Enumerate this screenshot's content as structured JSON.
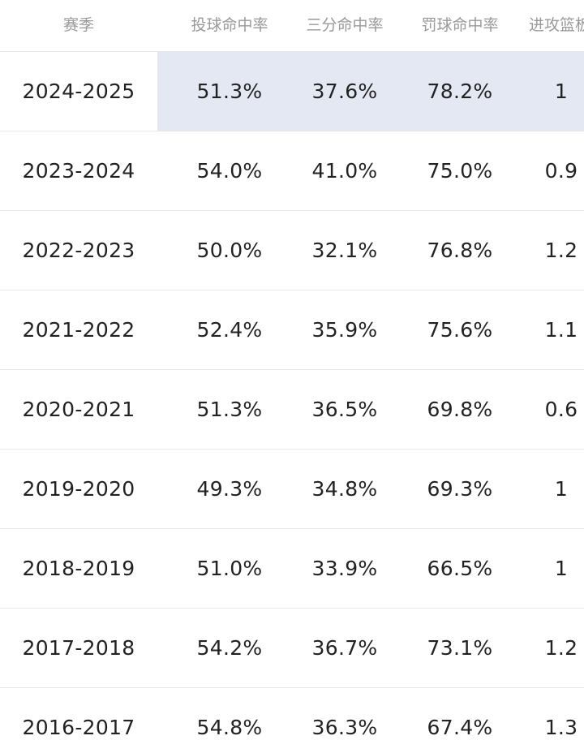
{
  "table": {
    "headers": [
      "赛季",
      "投球命中率",
      "三分命中率",
      "罚球命中率",
      "进攻篮板"
    ],
    "rows": [
      [
        "2024-2025",
        "51.3%",
        "37.6%",
        "78.2%",
        "1"
      ],
      [
        "2023-2024",
        "54.0%",
        "41.0%",
        "75.0%",
        "0.9"
      ],
      [
        "2022-2023",
        "50.0%",
        "32.1%",
        "76.8%",
        "1.2"
      ],
      [
        "2021-2022",
        "52.4%",
        "35.9%",
        "75.6%",
        "1.1"
      ],
      [
        "2020-2021",
        "51.3%",
        "36.5%",
        "69.8%",
        "0.6"
      ],
      [
        "2019-2020",
        "49.3%",
        "34.8%",
        "69.3%",
        "1"
      ],
      [
        "2018-2019",
        "51.0%",
        "33.9%",
        "66.5%",
        "1"
      ],
      [
        "2017-2018",
        "54.2%",
        "36.7%",
        "73.1%",
        "1.2"
      ],
      [
        "2016-2017",
        "54.8%",
        "36.3%",
        "67.4%",
        "1.3"
      ]
    ],
    "highlight_row": 0,
    "highlight_color": "#e3e8f2"
  }
}
